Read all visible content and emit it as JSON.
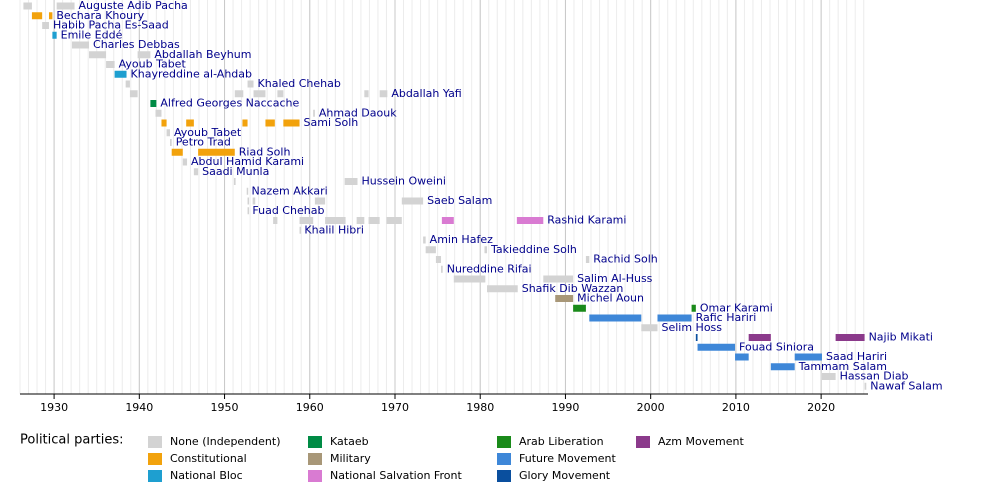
{
  "chart_data": {
    "type": "timeline",
    "xlim": [
      1926,
      2025.5
    ],
    "xticks": [
      1930,
      1940,
      1950,
      1960,
      1970,
      1980,
      1990,
      2000,
      2010,
      2020
    ],
    "legend_title": "Political parties:",
    "parties": [
      {
        "name": "None (Independent)",
        "color": "#d3d3d3"
      },
      {
        "name": "Constitutional",
        "color": "#f2a20c"
      },
      {
        "name": "National Bloc",
        "color": "#1e9fd0"
      },
      {
        "name": "Kataeb",
        "color": "#008b45"
      },
      {
        "name": "Military",
        "color": "#a89778"
      },
      {
        "name": "National Salvation Front",
        "color": "#d97bd2"
      },
      {
        "name": "Arab Liberation",
        "color": "#1a8a1a"
      },
      {
        "name": "Future Movement",
        "color": "#3e87d8"
      },
      {
        "name": "Glory Movement",
        "color": "#0a4f9e"
      },
      {
        "name": "Azm Movement",
        "color": "#8b3a8b"
      }
    ],
    "rows": [
      {
        "name": "Auguste Adib Pacha",
        "terms": [
          [
            1926.4,
            1927.4,
            0
          ],
          [
            1930.3,
            1932.4,
            0
          ]
        ]
      },
      {
        "name": "Bechara Khoury",
        "terms": [
          [
            1927.4,
            1928.6,
            1
          ],
          [
            1929.4,
            1929.8,
            1
          ]
        ]
      },
      {
        "name": "Habib Pacha Es-Saad",
        "terms": [
          [
            1928.6,
            1929.4,
            0
          ]
        ]
      },
      {
        "name": "Emile Eddé",
        "terms": [
          [
            1929.8,
            1930.3,
            2
          ]
        ]
      },
      {
        "name": "Charles Debbas",
        "terms": [
          [
            1932.1,
            1934.1,
            0
          ]
        ]
      },
      {
        "name": "Abdallah Beyhum",
        "terms": [
          [
            1934.1,
            1936.1,
            0
          ],
          [
            1939.8,
            1941.3,
            0
          ]
        ]
      },
      {
        "name": "Ayoub Tabet",
        "terms": [
          [
            1936.1,
            1937.1,
            0
          ]
        ]
      },
      {
        "name": "Khayreddine al-Ahdab",
        "terms": [
          [
            1937.1,
            1938.5,
            2
          ]
        ]
      },
      {
        "name": "Khaled Chehab",
        "terms": [
          [
            1938.4,
            1938.9,
            0
          ],
          [
            1952.7,
            1953.4,
            0
          ]
        ]
      },
      {
        "name": "Abdallah Yafi",
        "terms": [
          [
            1938.9,
            1939.8,
            0
          ],
          [
            1951.2,
            1952.2,
            0
          ],
          [
            1953.4,
            1954.8,
            0
          ],
          [
            1956.2,
            1956.9,
            0
          ],
          [
            1966.4,
            1966.9,
            0
          ],
          [
            1968.2,
            1969.1,
            0
          ]
        ]
      },
      {
        "name": "Alfred Georges Naccache",
        "terms": [
          [
            1941.3,
            1942.0,
            3
          ]
        ]
      },
      {
        "name": "Ahmad Daouk",
        "terms": [
          [
            1941.9,
            1942.6,
            0
          ],
          [
            1960.4,
            1960.6,
            0
          ]
        ]
      },
      {
        "name": "Sami Solh",
        "terms": [
          [
            1942.6,
            1943.2,
            1
          ],
          [
            1945.5,
            1946.4,
            1
          ],
          [
            1952.1,
            1952.7,
            1
          ],
          [
            1954.8,
            1955.9,
            1
          ],
          [
            1956.9,
            1958.8,
            1
          ]
        ]
      },
      {
        "name": "Ayoub Tabet",
        "terms": [
          [
            1943.2,
            1943.6,
            0
          ]
        ]
      },
      {
        "name": "Petro Trad",
        "terms": [
          [
            1943.6,
            1943.8,
            0
          ]
        ]
      },
      {
        "name": "Riad Solh",
        "terms": [
          [
            1943.8,
            1945.1,
            1
          ],
          [
            1946.9,
            1951.2,
            1
          ]
        ]
      },
      {
        "name": "Abdul Hamid Karami",
        "terms": [
          [
            1945.1,
            1945.6,
            0
          ]
        ]
      },
      {
        "name": "Saadi Munla",
        "terms": [
          [
            1946.4,
            1946.9,
            0
          ]
        ]
      },
      {
        "name": "Hussein Oweini",
        "terms": [
          [
            1951.1,
            1951.3,
            0
          ],
          [
            1964.1,
            1965.6,
            0
          ]
        ]
      },
      {
        "name": "Nazem Akkari",
        "terms": [
          [
            1952.6,
            1952.7,
            0
          ]
        ]
      },
      {
        "name": "Saeb Salam",
        "terms": [
          [
            1952.7,
            1952.8,
            0
          ],
          [
            1953.3,
            1953.6,
            0
          ],
          [
            1960.6,
            1961.8,
            0
          ],
          [
            1970.8,
            1973.3,
            0
          ]
        ]
      },
      {
        "name": "Fuad Chehab",
        "terms": [
          [
            1952.7,
            1952.8,
            0
          ]
        ]
      },
      {
        "name": "Rashid Karami",
        "terms": [
          [
            1955.7,
            1956.2,
            0
          ],
          [
            1958.8,
            1960.4,
            0
          ],
          [
            1961.8,
            1964.2,
            0
          ],
          [
            1965.5,
            1966.4,
            0
          ],
          [
            1966.9,
            1968.2,
            0
          ],
          [
            1969.0,
            1970.8,
            0
          ],
          [
            1975.5,
            1976.9,
            5
          ],
          [
            1984.3,
            1987.4,
            5
          ]
        ]
      },
      {
        "name": "Khalil Hibri",
        "terms": [
          [
            1958.8,
            1958.9,
            0
          ]
        ]
      },
      {
        "name": "Amin Hafez",
        "terms": [
          [
            1973.3,
            1973.6,
            0
          ]
        ]
      },
      {
        "name": "Takieddine Solh",
        "terms": [
          [
            1973.6,
            1974.8,
            0
          ],
          [
            1980.5,
            1980.8,
            0
          ]
        ]
      },
      {
        "name": "Rachid Solh",
        "terms": [
          [
            1974.8,
            1975.4,
            0
          ],
          [
            1992.4,
            1992.8,
            0
          ]
        ]
      },
      {
        "name": "Nureddine Rifai",
        "terms": [
          [
            1975.4,
            1975.6,
            0
          ]
        ]
      },
      {
        "name": "Salim Al-Huss",
        "terms": [
          [
            1976.9,
            1980.6,
            0
          ],
          [
            1987.4,
            1990.9,
            0
          ]
        ]
      },
      {
        "name": "Shafik Dib Wazzan",
        "terms": [
          [
            1980.8,
            1984.4,
            0
          ]
        ]
      },
      {
        "name": "Michel Aoun",
        "terms": [
          [
            1988.8,
            1990.9,
            4
          ]
        ]
      },
      {
        "name": "Omar Karami",
        "terms": [
          [
            1990.9,
            1992.4,
            6
          ],
          [
            2004.8,
            2005.3,
            6
          ]
        ]
      },
      {
        "name": "Rafic Hariri",
        "terms": [
          [
            1992.8,
            1998.9,
            7
          ],
          [
            2000.8,
            2004.8,
            7
          ]
        ]
      },
      {
        "name": "Selim Hoss",
        "terms": [
          [
            1998.9,
            2000.8,
            0
          ]
        ]
      },
      {
        "name": "Najib Mikati",
        "terms": [
          [
            2005.3,
            2005.5,
            8
          ],
          [
            2011.5,
            2014.1,
            9
          ],
          [
            2021.7,
            2025.1,
            9
          ]
        ]
      },
      {
        "name": "Fouad Siniora",
        "terms": [
          [
            2005.5,
            2009.9,
            7
          ]
        ]
      },
      {
        "name": "Saad Hariri",
        "terms": [
          [
            2009.9,
            2011.5,
            7
          ],
          [
            2016.9,
            2020.1,
            7
          ]
        ]
      },
      {
        "name": "Tammam Salam",
        "terms": [
          [
            2014.1,
            2016.9,
            7
          ]
        ]
      },
      {
        "name": "Hassan Diab",
        "terms": [
          [
            2020.1,
            2021.7,
            0
          ]
        ]
      },
      {
        "name": "Nawaf Salam",
        "terms": [
          [
            2025.1,
            2025.3,
            0
          ]
        ]
      }
    ]
  }
}
